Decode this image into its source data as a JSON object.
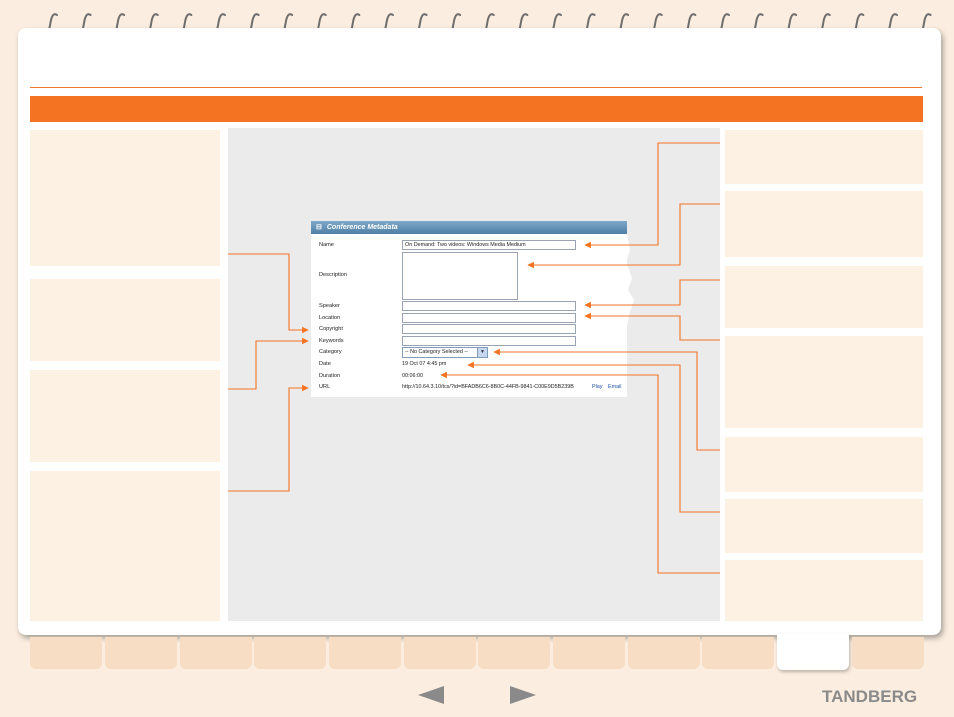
{
  "panel": {
    "title": "Conference Metadata",
    "fields": {
      "name": {
        "label": "Name",
        "value": "On Demand: Two videos: Windows Media Medium"
      },
      "description": {
        "label": "Description",
        "value": ""
      },
      "speaker": {
        "label": "Speaker",
        "value": ""
      },
      "location": {
        "label": "Location",
        "value": ""
      },
      "copyright": {
        "label": "Copyright",
        "value": ""
      },
      "keywords": {
        "label": "Keywords",
        "value": ""
      },
      "category": {
        "label": "Category",
        "value": "-- No Category Selected --"
      },
      "date": {
        "label": "Date",
        "value": "19 Oct 07 4:45 pm"
      },
      "duration": {
        "label": "Duration",
        "value": "00:06:00"
      },
      "url": {
        "label": "URL",
        "value": "http://10.64.3.10/tcs/?id=BFADB6C6-8B0C-44FB-9841-C00E9D5B239B",
        "play_link": "Play",
        "email_link": "Email"
      }
    }
  },
  "colors": {
    "accent": "#f47322",
    "note_box": "#fdf1e4",
    "screen_bg": "#ebebeb",
    "header_blue": "#4f7fa6"
  },
  "icons": {
    "spiral_binding": "binding-rings-icon",
    "prev": "previous-arrow-icon",
    "next": "next-arrow-icon"
  },
  "footer": {
    "brand": "TANDBERG"
  }
}
